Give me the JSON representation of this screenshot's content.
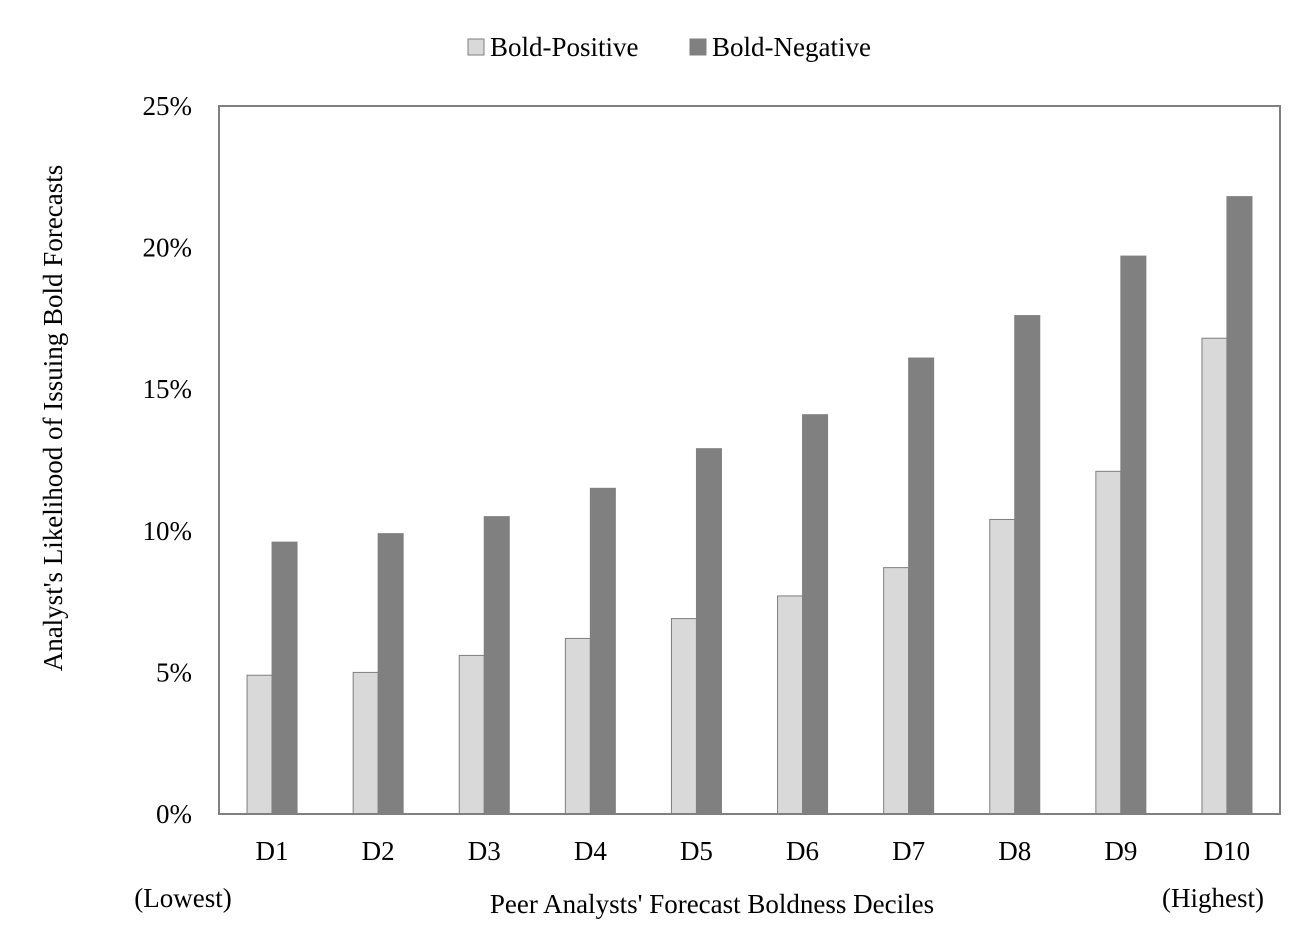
{
  "chart_data": {
    "type": "bar",
    "title": "",
    "xlabel": "Peer Analysts' Forecast Boldness Deciles",
    "ylabel": "Analyst's Likelihood of Issuing Bold Forecasts",
    "categories": [
      "D1",
      "D2",
      "D3",
      "D4",
      "D5",
      "D6",
      "D7",
      "D8",
      "D9",
      "D10"
    ],
    "x_end_labels": {
      "left": "(Lowest)",
      "right": "(Highest)"
    },
    "series": [
      {
        "name": "Bold-Positive",
        "color": "#d9d9d9",
        "values": [
          4.9,
          5.0,
          5.6,
          6.2,
          6.9,
          7.7,
          8.7,
          10.4,
          12.1,
          16.8
        ]
      },
      {
        "name": "Bold-Negative",
        "color": "#808080",
        "values": [
          9.6,
          9.9,
          10.5,
          11.5,
          12.9,
          14.1,
          16.1,
          17.6,
          19.7,
          21.8
        ]
      }
    ],
    "ylim": [
      0,
      25
    ],
    "yticks": [
      0,
      5,
      10,
      15,
      20,
      25
    ],
    "ytick_labels": [
      "0%",
      "5%",
      "10%",
      "15%",
      "20%",
      "25%"
    ],
    "y_unit": "%",
    "grid": false,
    "legend": "top-center"
  }
}
